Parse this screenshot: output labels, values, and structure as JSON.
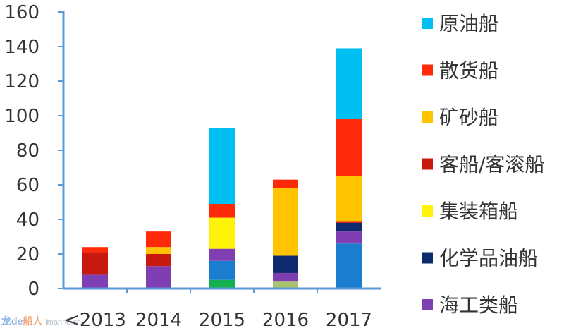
{
  "chart_data": {
    "type": "bar",
    "stacked": true,
    "title": "",
    "xlabel": "",
    "ylabel": "",
    "ylim": [
      0,
      160
    ],
    "yticks": [
      0,
      20,
      40,
      60,
      80,
      100,
      120,
      140,
      160
    ],
    "categories": [
      "<2013",
      "2014",
      "2015",
      "2016",
      "2017"
    ],
    "grid": false,
    "legend_position": "right",
    "legend": [
      {
        "name": "原油船",
        "color": "#00BFF3"
      },
      {
        "name": "散货船",
        "color": "#FF2A0A"
      },
      {
        "name": "矿砂船",
        "color": "#FFC300"
      },
      {
        "name": "客船/客滚船",
        "color": "#C8190E"
      },
      {
        "name": "集装箱船",
        "color": "#FFF30A"
      },
      {
        "name": "化学品油船",
        "color": "#0D2B6E"
      },
      {
        "name": "海工类船",
        "color": "#7F3FB2"
      }
    ],
    "series": [
      {
        "color": "#14B050",
        "values": [
          0,
          0,
          5,
          0,
          0
        ]
      },
      {
        "color": "#A9C26E",
        "values": [
          0,
          0,
          0,
          4,
          0
        ]
      },
      {
        "color": "#1A7DD0",
        "values": [
          0,
          0,
          11,
          0,
          26
        ]
      },
      {
        "name": "海工类船",
        "color": "#7F3FB2",
        "values": [
          8,
          13,
          7,
          5,
          7
        ]
      },
      {
        "name": "化学品油船",
        "color": "#0D2B6E",
        "values": [
          0,
          0,
          0,
          10,
          5
        ]
      },
      {
        "name": "集装箱船",
        "color": "#FFF30A",
        "values": [
          0,
          0,
          18,
          0,
          0
        ]
      },
      {
        "name": "客船/客滚船",
        "color": "#C8190E",
        "values": [
          13,
          7,
          0,
          0,
          1
        ]
      },
      {
        "name": "矿砂船",
        "color": "#FFC300",
        "values": [
          0,
          4,
          0,
          39,
          26
        ]
      },
      {
        "name": "散货船",
        "color": "#FF2A0A",
        "values": [
          3,
          9,
          8,
          5,
          33
        ]
      },
      {
        "name": "原油船",
        "color": "#00BFF3",
        "values": [
          0,
          0,
          44,
          0,
          41
        ]
      }
    ]
  },
  "colors": {
    "axis": "#5B9BD5",
    "text": "#333333"
  },
  "watermark": {
    "brand_a": "龙de",
    "brand_b": "船人",
    "site": "imarine.cn"
  }
}
